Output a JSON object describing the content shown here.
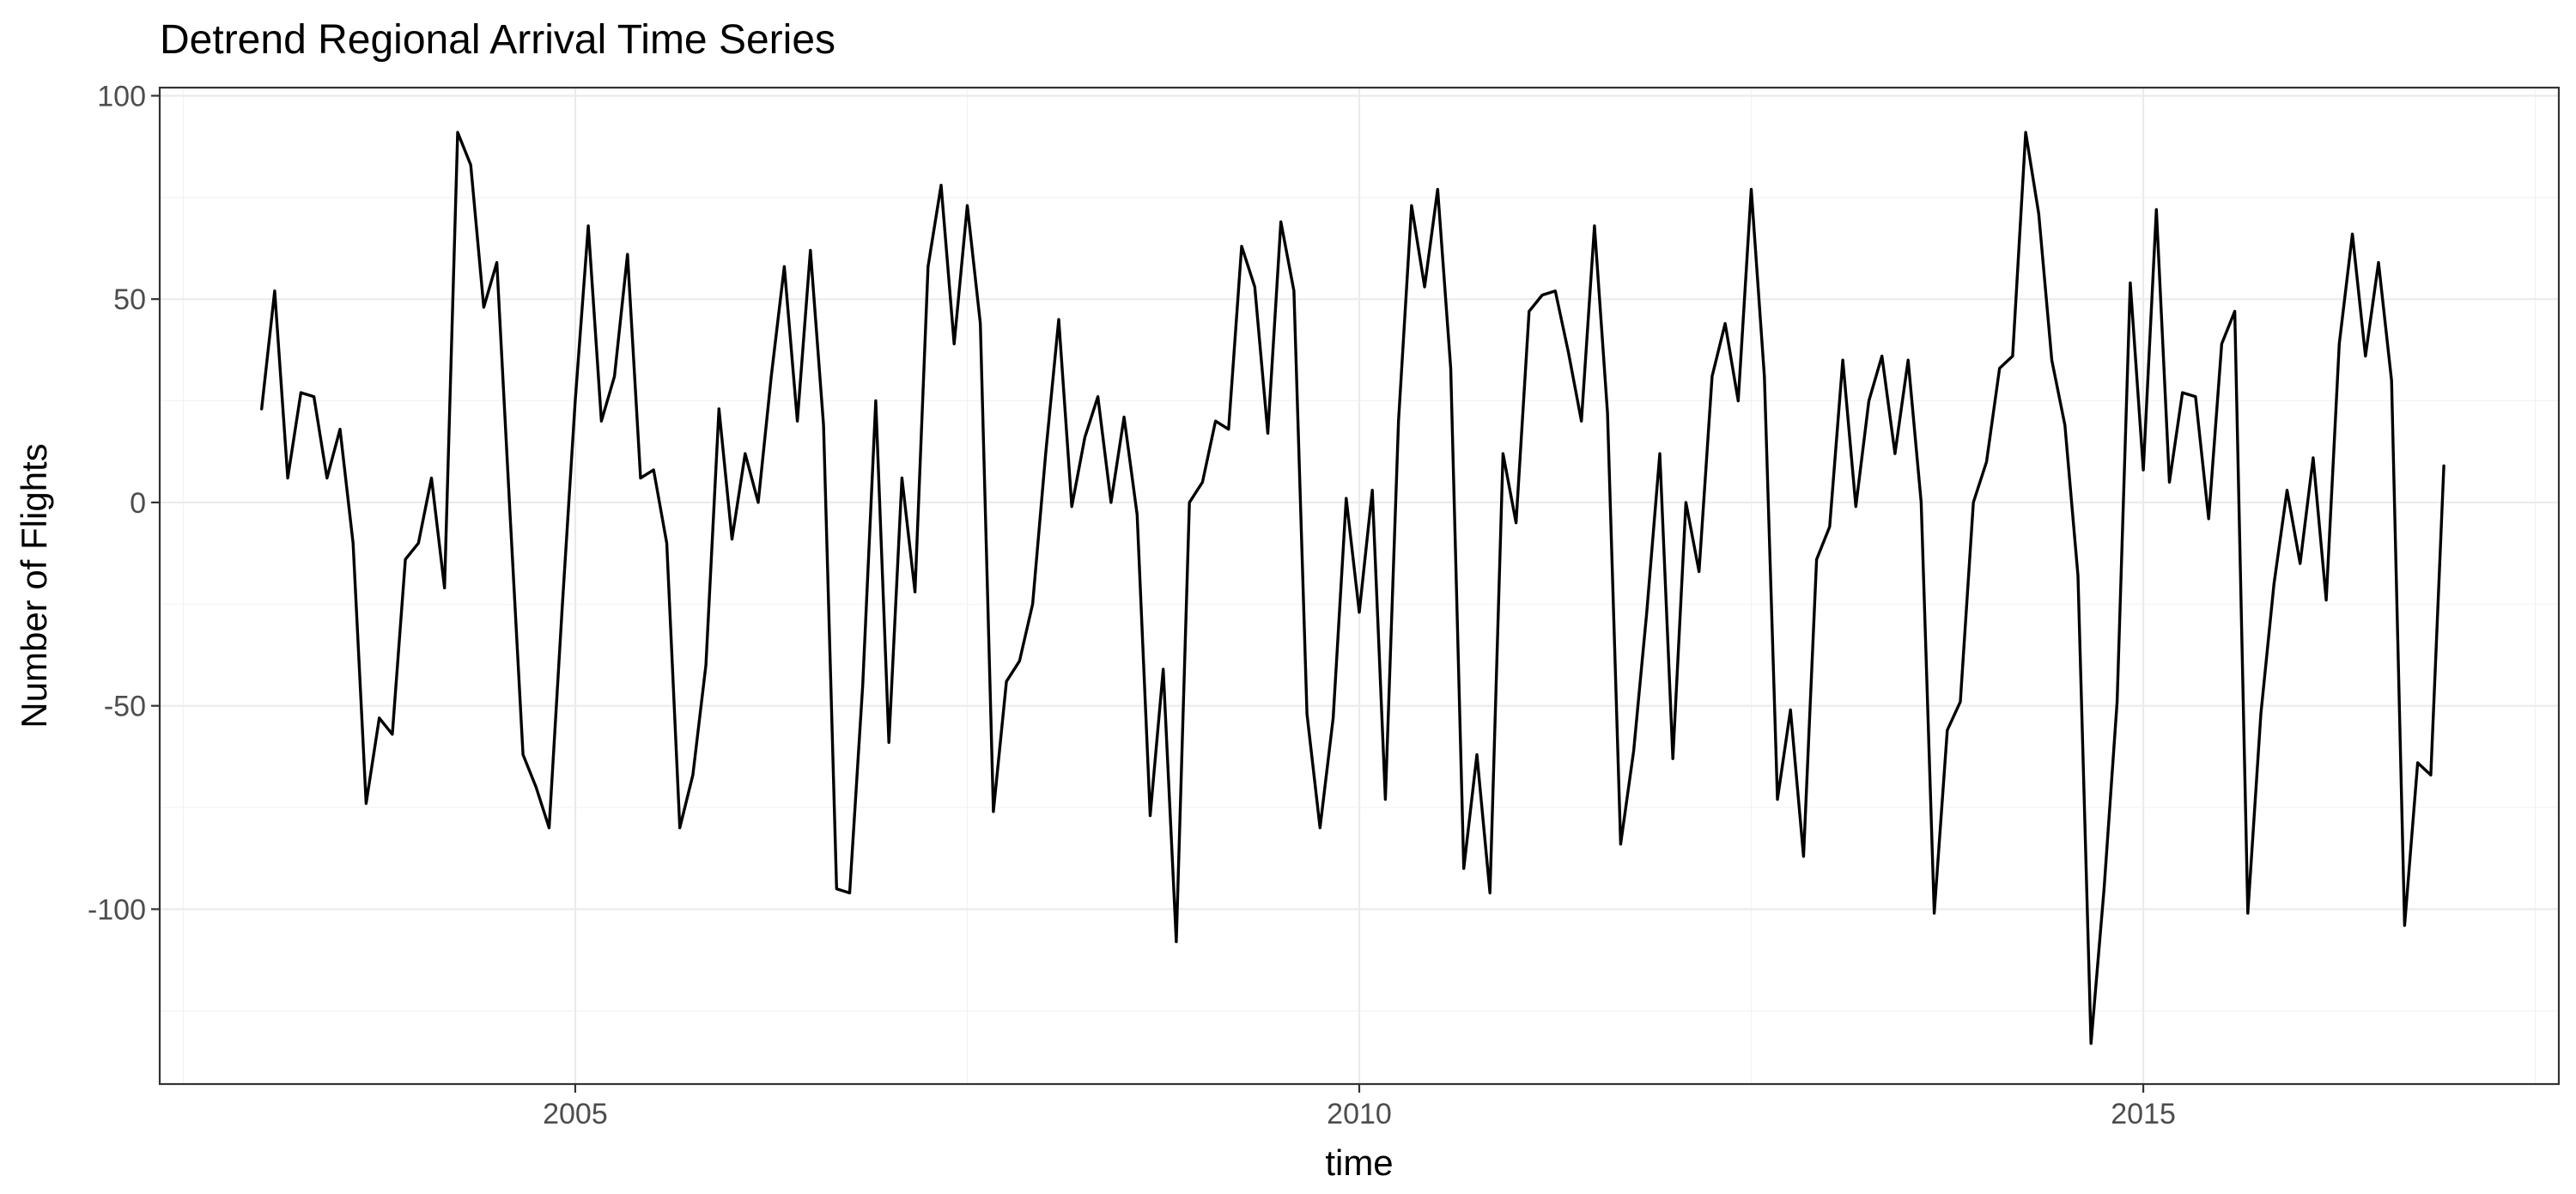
{
  "chart_data": {
    "type": "line",
    "title": "Detrend  Regional Arrival Time Series",
    "xlabel": "time",
    "ylabel": "Number of Flights",
    "xlim": [
      2002.35,
      2017.65
    ],
    "ylim": [
      -143,
      102
    ],
    "x_ticks": [
      2005,
      2010,
      2015
    ],
    "x_tick_labels": [
      "2005",
      "2010",
      "2015"
    ],
    "y_ticks": [
      -100,
      -50,
      0,
      50,
      100
    ],
    "y_tick_labels": [
      "-100",
      "-50",
      "0",
      "50",
      "100"
    ],
    "grid": true,
    "legend": "none",
    "series": [
      {
        "start": 2003.0,
        "frequency": 12,
        "color": "#000000",
        "values": [
          23,
          52,
          6,
          27,
          26,
          6,
          18,
          -10,
          -74,
          -53,
          -57,
          -14,
          -10,
          6,
          -21,
          91,
          83,
          48,
          59,
          -2,
          -62,
          -70,
          -80,
          -26,
          25,
          68,
          20,
          31,
          61,
          6,
          8,
          -10,
          -80,
          -67,
          -40,
          23,
          -9,
          12,
          0,
          31,
          58,
          20,
          62,
          19,
          -95,
          -96,
          -45,
          25,
          -59,
          6,
          -22,
          58,
          78,
          39,
          73,
          44,
          -76,
          -44,
          -39,
          -25,
          12,
          45,
          -1,
          16,
          26,
          0,
          21,
          -3,
          -77,
          -41,
          -108,
          0,
          5,
          20,
          18,
          63,
          53,
          17,
          69,
          52,
          -52,
          -80,
          -53,
          1,
          -27,
          3,
          -73,
          20,
          73,
          53,
          77,
          33,
          -90,
          -62,
          -96,
          12,
          -5,
          47,
          51,
          52,
          37,
          20,
          68,
          22,
          -84,
          -61,
          -27,
          12,
          -63,
          0,
          -17,
          31,
          44,
          25,
          77,
          31,
          -73,
          -51,
          -87,
          -14,
          -6,
          35,
          -1,
          25,
          36,
          12,
          35,
          0,
          -101,
          -56,
          -49,
          0,
          10,
          33,
          36,
          91,
          71,
          35,
          19,
          -18,
          -133,
          -95,
          -49,
          54,
          8,
          72,
          5,
          27,
          26,
          -4,
          39,
          47,
          -101,
          -52,
          -20,
          3,
          -15,
          11,
          -24,
          39,
          66,
          36,
          59,
          30,
          -104,
          -64,
          -67,
          9
        ]
      }
    ]
  }
}
